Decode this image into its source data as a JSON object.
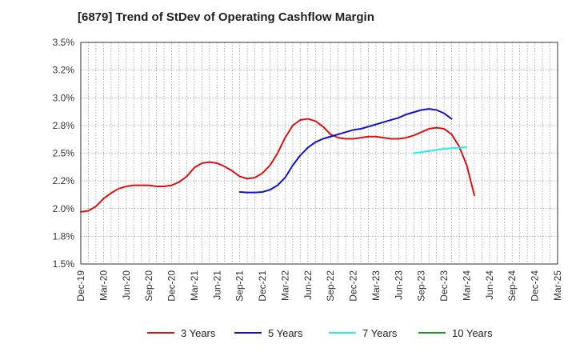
{
  "chart_data": {
    "type": "line",
    "title": "[6879]  Trend of StDev of Operating Cashflow Margin",
    "xlabel": "",
    "ylabel": "",
    "ylim": [
      1.5,
      3.5
    ],
    "grid": true,
    "legend_position": "bottom",
    "x_ticks": [
      "Dec-19",
      "Mar-20",
      "Jun-20",
      "Sep-20",
      "Dec-20",
      "Mar-21",
      "Jun-21",
      "Sep-21",
      "Dec-21",
      "Mar-22",
      "Jun-22",
      "Sep-22",
      "Dec-22",
      "Mar-23",
      "Jun-23",
      "Sep-23",
      "Dec-23",
      "Mar-24",
      "Jun-24",
      "Sep-24",
      "Dec-24",
      "Mar-25"
    ],
    "y_ticks": [
      {
        "value": 1.5,
        "label": "1.5%"
      },
      {
        "value": 1.75,
        "label": "1.8%"
      },
      {
        "value": 2.0,
        "label": "2.0%"
      },
      {
        "value": 2.25,
        "label": "2.2%"
      },
      {
        "value": 2.5,
        "label": "2.5%"
      },
      {
        "value": 2.75,
        "label": "2.8%"
      },
      {
        "value": 3.0,
        "label": "3.0%"
      },
      {
        "value": 3.25,
        "label": "3.2%"
      },
      {
        "value": 3.5,
        "label": "3.5%"
      }
    ],
    "series": [
      {
        "name": "3 Years",
        "color": "#dd1111",
        "start_month": "2019-12",
        "values": [
          1.97,
          1.98,
          2.02,
          2.09,
          2.14,
          2.18,
          2.2,
          2.21,
          2.21,
          2.21,
          2.2,
          2.2,
          2.21,
          2.24,
          2.29,
          2.37,
          2.41,
          2.42,
          2.41,
          2.38,
          2.34,
          2.29,
          2.27,
          2.28,
          2.32,
          2.39,
          2.5,
          2.64,
          2.75,
          2.8,
          2.81,
          2.79,
          2.74,
          2.67,
          2.64,
          2.63,
          2.63,
          2.64,
          2.65,
          2.65,
          2.64,
          2.63,
          2.63,
          2.64,
          2.66,
          2.69,
          2.72,
          2.73,
          2.72,
          2.67,
          2.56,
          2.39,
          2.12
        ]
      },
      {
        "name": "5 Years",
        "color": "#1111cc",
        "start_month": "2021-09",
        "values": [
          2.15,
          2.145,
          2.145,
          2.15,
          2.17,
          2.21,
          2.28,
          2.39,
          2.48,
          2.55,
          2.6,
          2.63,
          2.65,
          2.67,
          2.69,
          2.71,
          2.72,
          2.74,
          2.76,
          2.78,
          2.8,
          2.82,
          2.85,
          2.87,
          2.89,
          2.9,
          2.89,
          2.86,
          2.81
        ]
      },
      {
        "name": "7 Years",
        "color": "#22eeee",
        "start_month": "2023-08",
        "values": [
          2.5,
          2.51,
          2.52,
          2.53,
          2.54,
          2.545,
          2.55,
          2.555
        ]
      },
      {
        "name": "10 Years",
        "color": "#229922",
        "start_month": "2024-03",
        "values": []
      }
    ]
  }
}
